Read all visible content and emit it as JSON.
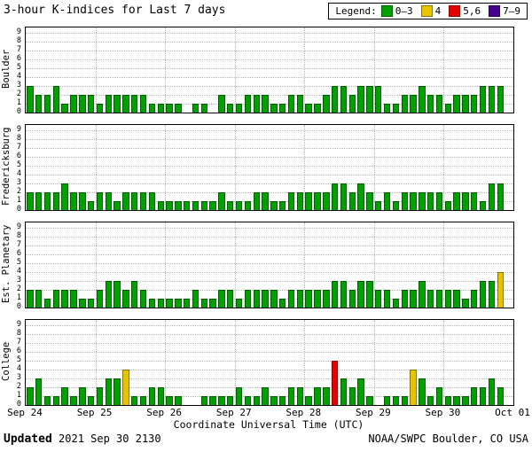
{
  "legend": {
    "label": "Legend:",
    "items": [
      {
        "label": "0–3",
        "color": "#00a000",
        "edge": "#006000"
      },
      {
        "label": "4",
        "color": "#e8c400",
        "edge": "#8a7400"
      },
      {
        "label": "5,6",
        "color": "#e60000",
        "edge": "#8f0000"
      },
      {
        "label": "7–9",
        "color": "#45008f",
        "edge": "#2a0057"
      }
    ]
  },
  "footer": {
    "updated_label": "Updated",
    "updated_time": "2021 Sep 30 2130",
    "credit": "NOAA/SWPC Boulder, CO USA"
  },
  "chart_data": {
    "type": "bar",
    "title": "3-hour K-indices for Last 7 days",
    "xlabel": "Coordinate Universal Time (UTC)",
    "x_tick_labels": [
      "Sep 24",
      "Sep 25",
      "Sep 26",
      "Sep 27",
      "Sep 28",
      "Sep 29",
      "Sep 30",
      "Oct 01"
    ],
    "y_ticks": [
      0,
      1,
      2,
      3,
      4,
      5,
      6,
      7,
      8,
      9
    ],
    "ylim": [
      0,
      9
    ],
    "days": 7,
    "bars_per_day": 8,
    "bar_interval_hours": 3,
    "grid": "dotted",
    "legend_position": "top-right",
    "color_rules": [
      {
        "max": 3,
        "fill": "#00a000",
        "edge": "#006000"
      },
      {
        "max": 4,
        "fill": "#e8c400",
        "edge": "#8a7400"
      },
      {
        "max": 6,
        "fill": "#e60000",
        "edge": "#8f0000"
      },
      {
        "max": 9,
        "fill": "#45008f",
        "edge": "#2a0057"
      }
    ],
    "series": [
      {
        "name": "Boulder",
        "values": [
          3,
          2,
          2,
          3,
          1,
          2,
          2,
          2,
          1,
          2,
          2,
          2,
          2,
          2,
          1,
          1,
          1,
          1,
          0,
          1,
          1,
          0,
          2,
          1,
          1,
          2,
          2,
          2,
          1,
          1,
          2,
          2,
          1,
          1,
          2,
          3,
          3,
          2,
          3,
          3,
          3,
          1,
          1,
          2,
          2,
          3,
          2,
          2,
          1,
          2,
          2,
          2,
          3,
          3,
          3
        ]
      },
      {
        "name": "Fredericksburg",
        "values": [
          2,
          2,
          2,
          2,
          3,
          2,
          2,
          1,
          2,
          2,
          1,
          2,
          2,
          2,
          2,
          1,
          1,
          1,
          1,
          1,
          1,
          1,
          2,
          1,
          1,
          1,
          2,
          2,
          1,
          1,
          2,
          2,
          2,
          2,
          2,
          3,
          3,
          2,
          3,
          2,
          1,
          2,
          1,
          2,
          2,
          2,
          2,
          2,
          1,
          2,
          2,
          2,
          1,
          3,
          3
        ]
      },
      {
        "name": "Est. Planetary",
        "values": [
          2,
          2,
          1,
          2,
          2,
          2,
          1,
          1,
          2,
          3,
          3,
          2,
          3,
          2,
          1,
          1,
          1,
          1,
          1,
          2,
          1,
          1,
          2,
          2,
          1,
          2,
          2,
          2,
          2,
          1,
          2,
          2,
          2,
          2,
          2,
          3,
          3,
          2,
          3,
          3,
          2,
          2,
          1,
          2,
          2,
          3,
          2,
          2,
          2,
          2,
          1,
          2,
          3,
          3,
          4
        ]
      },
      {
        "name": "College",
        "values": [
          2,
          3,
          1,
          1,
          2,
          1,
          2,
          1,
          2,
          3,
          3,
          4,
          1,
          1,
          2,
          2,
          1,
          1,
          0,
          0,
          1,
          1,
          1,
          1,
          2,
          1,
          1,
          2,
          1,
          1,
          2,
          2,
          1,
          2,
          2,
          5,
          3,
          2,
          3,
          1,
          0,
          1,
          1,
          1,
          4,
          3,
          1,
          2,
          1,
          1,
          1,
          2,
          2,
          3,
          2
        ]
      }
    ]
  }
}
